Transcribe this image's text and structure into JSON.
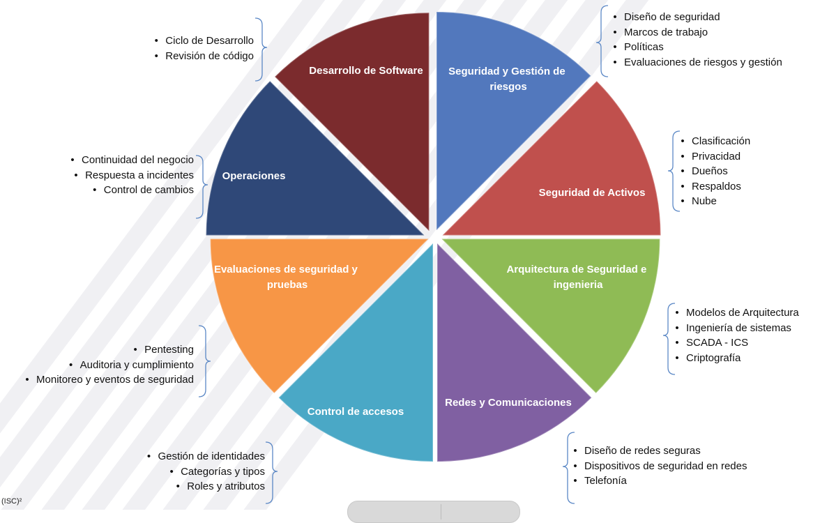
{
  "diagram": {
    "colors": {
      "software": "#7b2b2d",
      "risk": "#5278bd",
      "assets": "#c0504d",
      "architecture": "#8fbb55",
      "networks": "#8060a2",
      "access": "#4aa8c6",
      "testing": "#f79646",
      "operations": "#2f4878",
      "bracket": "#5a87c5"
    },
    "segments": [
      {
        "key": "software",
        "title": "Desarrollo de Software"
      },
      {
        "key": "risk",
        "title": "Seguridad y Gestión de riesgos"
      },
      {
        "key": "assets",
        "title": "Seguridad de Activos"
      },
      {
        "key": "architecture",
        "title": "Arquitectura de Seguridad e ingenieria"
      },
      {
        "key": "networks",
        "title": "Redes y Comunicaciones"
      },
      {
        "key": "access",
        "title": "Control de accesos"
      },
      {
        "key": "testing",
        "title": "Evaluaciones de seguridad y pruebas"
      },
      {
        "key": "operations",
        "title": "Operaciones"
      }
    ],
    "groups": {
      "software": [
        "Ciclo de Desarrollo",
        "Revisión de código"
      ],
      "risk": [
        "Diseño de seguridad",
        "Marcos de trabajo",
        "Políticas",
        "Evaluaciones de riesgos y gestión"
      ],
      "assets": [
        "Clasificación",
        "Privacidad",
        "Dueños",
        "Respaldos",
        "Nube"
      ],
      "architecture": [
        "Modelos de Arquitectura",
        "Ingeniería de sistemas",
        "SCADA - ICS",
        "Criptografía"
      ],
      "networks": [
        "Diseño de redes seguras",
        "Dispositivos de seguridad en redes",
        "Telefonía"
      ],
      "access": [
        "Gestión de identidades",
        "Categorías y tipos",
        "Roles y atributos"
      ],
      "testing": [
        "Pentesting",
        "Auditoria y cumplimiento",
        "Monitoreo y eventos de seguridad"
      ],
      "operations": [
        "Continuidad del negocio",
        "Respuesta a incidentes",
        "Control de cambios"
      ]
    },
    "footer_mark": "(ISC)²"
  }
}
